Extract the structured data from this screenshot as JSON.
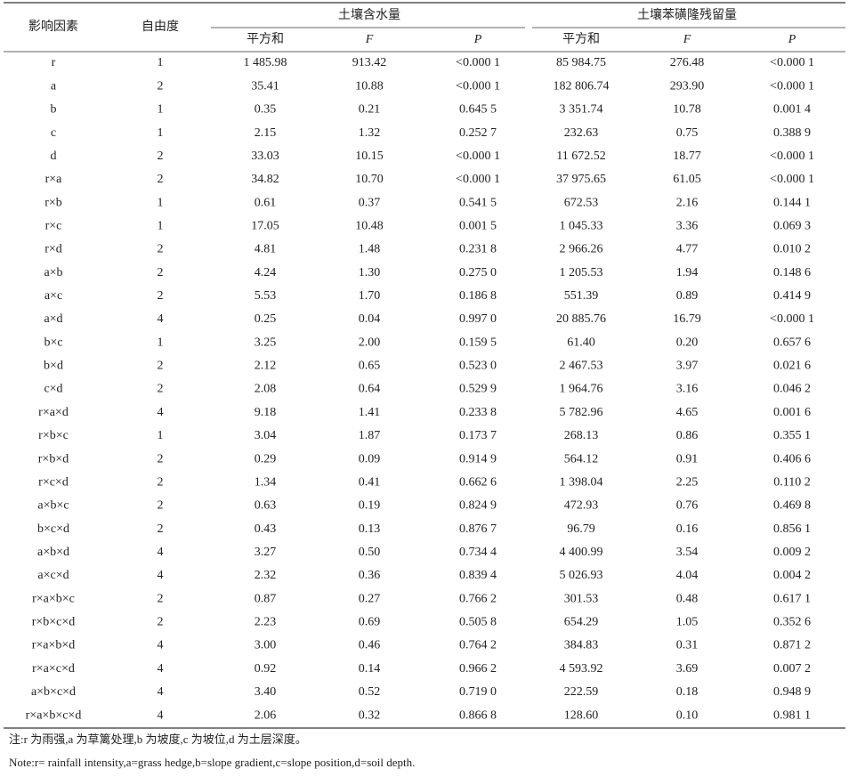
{
  "table": {
    "header": {
      "factor": "影响因素",
      "df": "自由度",
      "groups": [
        "土壤含水量",
        "土壤苯磺隆残留量"
      ],
      "sub": [
        "平方和",
        "F",
        "P",
        "平方和",
        "F",
        "P"
      ]
    },
    "rows": [
      [
        "r",
        "1",
        "1 485.98",
        "913.42",
        "<0.000 1",
        "85 984.75",
        "276.48",
        "<0.000 1"
      ],
      [
        "a",
        "2",
        "35.41",
        "10.88",
        "<0.000 1",
        "182 806.74",
        "293.90",
        "<0.000 1"
      ],
      [
        "b",
        "1",
        "0.35",
        "0.21",
        "0.645 5",
        "3 351.74",
        "10.78",
        "0.001 4"
      ],
      [
        "c",
        "1",
        "2.15",
        "1.32",
        "0.252 7",
        "232.63",
        "0.75",
        "0.388 9"
      ],
      [
        "d",
        "2",
        "33.03",
        "10.15",
        "<0.000 1",
        "11 672.52",
        "18.77",
        "<0.000 1"
      ],
      [
        "r×a",
        "2",
        "34.82",
        "10.70",
        "<0.000 1",
        "37 975.65",
        "61.05",
        "<0.000 1"
      ],
      [
        "r×b",
        "1",
        "0.61",
        "0.37",
        "0.541 5",
        "672.53",
        "2.16",
        "0.144 1"
      ],
      [
        "r×c",
        "1",
        "17.05",
        "10.48",
        "0.001 5",
        "1 045.33",
        "3.36",
        "0.069 3"
      ],
      [
        "r×d",
        "2",
        "4.81",
        "1.48",
        "0.231 8",
        "2 966.26",
        "4.77",
        "0.010 2"
      ],
      [
        "a×b",
        "2",
        "4.24",
        "1.30",
        "0.275 0",
        "1 205.53",
        "1.94",
        "0.148 6"
      ],
      [
        "a×c",
        "2",
        "5.53",
        "1.70",
        "0.186 8",
        "551.39",
        "0.89",
        "0.414 9"
      ],
      [
        "a×d",
        "4",
        "0.25",
        "0.04",
        "0.997 0",
        "20 885.76",
        "16.79",
        "<0.000 1"
      ],
      [
        "b×c",
        "1",
        "3.25",
        "2.00",
        "0.159 5",
        "61.40",
        "0.20",
        "0.657 6"
      ],
      [
        "b×d",
        "2",
        "2.12",
        "0.65",
        "0.523 0",
        "2 467.53",
        "3.97",
        "0.021 6"
      ],
      [
        "c×d",
        "2",
        "2.08",
        "0.64",
        "0.529 9",
        "1 964.76",
        "3.16",
        "0.046 2"
      ],
      [
        "r×a×d",
        "4",
        "9.18",
        "1.41",
        "0.233 8",
        "5 782.96",
        "4.65",
        "0.001 6"
      ],
      [
        "r×b×c",
        "1",
        "3.04",
        "1.87",
        "0.173 7",
        "268.13",
        "0.86",
        "0.355 1"
      ],
      [
        "r×b×d",
        "2",
        "0.29",
        "0.09",
        "0.914 9",
        "564.12",
        "0.91",
        "0.406 6"
      ],
      [
        "r×c×d",
        "2",
        "1.34",
        "0.41",
        "0.662 6",
        "1 398.04",
        "2.25",
        "0.110 2"
      ],
      [
        "a×b×c",
        "2",
        "0.63",
        "0.19",
        "0.824 9",
        "472.93",
        "0.76",
        "0.469 8"
      ],
      [
        "b×c×d",
        "2",
        "0.43",
        "0.13",
        "0.876 7",
        "96.79",
        "0.16",
        "0.856 1"
      ],
      [
        "a×b×d",
        "4",
        "3.27",
        "0.50",
        "0.734 4",
        "4 400.99",
        "3.54",
        "0.009 2"
      ],
      [
        "a×c×d",
        "4",
        "2.32",
        "0.36",
        "0.839 4",
        "5 026.93",
        "4.04",
        "0.004 2"
      ],
      [
        "r×a×b×c",
        "2",
        "0.87",
        "0.27",
        "0.766 2",
        "301.53",
        "0.48",
        "0.617 1"
      ],
      [
        "r×b×c×d",
        "2",
        "2.23",
        "0.69",
        "0.505 8",
        "654.29",
        "1.05",
        "0.352 6"
      ],
      [
        "r×a×b×d",
        "4",
        "3.00",
        "0.46",
        "0.764 2",
        "384.83",
        "0.31",
        "0.871 2"
      ],
      [
        "r×a×c×d",
        "4",
        "0.92",
        "0.14",
        "0.966 2",
        "4 593.92",
        "3.69",
        "0.007 2"
      ],
      [
        "a×b×c×d",
        "4",
        "3.40",
        "0.52",
        "0.719 0",
        "222.59",
        "0.18",
        "0.948 9"
      ],
      [
        "r×a×b×c×d",
        "4",
        "2.06",
        "0.32",
        "0.866 8",
        "128.60",
        "0.10",
        "0.981 1"
      ]
    ],
    "notes": [
      "注:r 为雨强,a 为草篱处理,b 为坡度,c 为坡位,d 为土层深度。",
      "Note:r= rainfall intensity,a=grass hedge,b=slope gradient,c=slope position,d=soil depth."
    ]
  }
}
